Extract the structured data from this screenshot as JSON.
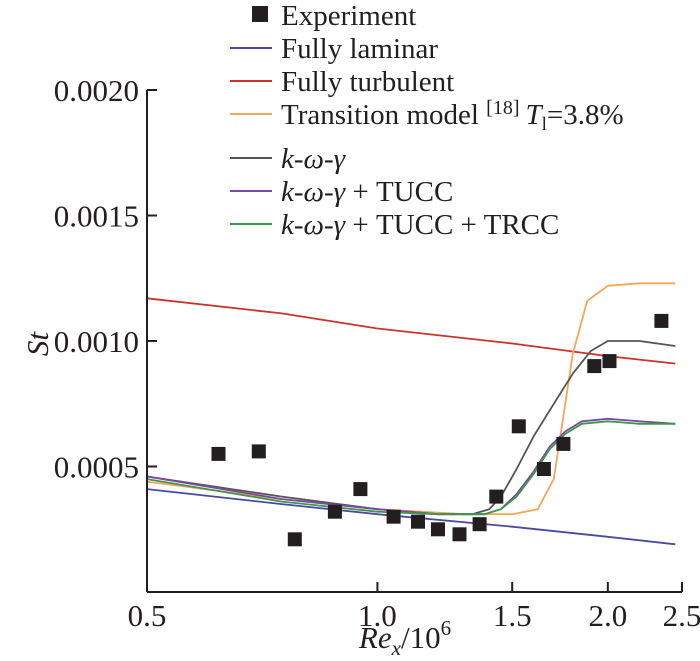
{
  "chart_data": {
    "type": "line",
    "x_scale": "log",
    "xlim": [
      0.5,
      2.5
    ],
    "ylim": [
      0,
      0.002
    ],
    "x_ticks": [
      0.5,
      1.0,
      1.5,
      2.0,
      2.5
    ],
    "x_tick_labels": [
      "0.5",
      "1.0",
      "1.5",
      "2.0",
      "2.5"
    ],
    "y_ticks": [
      0.0005,
      0.001,
      0.0015,
      0.002
    ],
    "y_tick_labels": [
      "0.0005",
      "0.0010",
      "0.0015",
      "0.0020"
    ],
    "xlabel": {
      "main": "Re",
      "sub": "x",
      "rest": "/10",
      "sup": "6"
    },
    "ylabel": "St",
    "legend": [
      {
        "name": "Experiment",
        "kind": "marker",
        "color": "#231f20",
        "label": "Experiment"
      },
      {
        "name": "Fully laminar",
        "kind": "line",
        "color": "#4a4aa0",
        "label": "Fully laminar"
      },
      {
        "name": "Fully turbulent",
        "kind": "line",
        "color": "#c8342a",
        "label": "Fully turbulent"
      },
      {
        "name": "Transition model",
        "kind": "line",
        "color": "#f5a55c",
        "label_text": "Transition model ",
        "label_ref": "[18]",
        "label_t": "T",
        "label_t_sub": "l",
        "label_value": "=3.8%"
      },
      {
        "name": "k-ω-γ",
        "kind": "line",
        "color": "#555555",
        "label_parts": [
          "k-ω-γ",
          ""
        ]
      },
      {
        "name": "k-ω-γ + TUCC",
        "kind": "line",
        "color": "#7b4aa6",
        "label_parts": [
          "k-ω-γ",
          " + TUCC"
        ]
      },
      {
        "name": "k-ω-γ + TUCC + TRCC",
        "kind": "line",
        "color": "#3a9a48",
        "label_parts": [
          "k-ω-γ",
          " + TUCC + TRCC"
        ]
      }
    ],
    "experiment": {
      "x": [
        0.62,
        0.7,
        0.78,
        0.88,
        0.95,
        1.05,
        1.13,
        1.2,
        1.28,
        1.36,
        1.43,
        1.53,
        1.65,
        1.75,
        1.92,
        2.01,
        2.35
      ],
      "y": [
        0.00055,
        0.00056,
        0.00021,
        0.00032,
        0.00041,
        0.0003,
        0.00028,
        0.00025,
        0.00023,
        0.00027,
        0.00038,
        0.00066,
        0.00049,
        0.00059,
        0.0009,
        0.00092,
        0.00108
      ]
    },
    "series": [
      {
        "name": "Fully laminar",
        "color": "#4a4aa0",
        "x": [
          0.5,
          0.75,
          1.0,
          1.5,
          2.0,
          2.45
        ],
        "y": [
          0.00041,
          0.00035,
          0.00031,
          0.00026,
          0.00022,
          0.00019
        ]
      },
      {
        "name": "Fully turbulent",
        "color": "#c8342a",
        "x": [
          0.5,
          0.75,
          1.0,
          1.5,
          2.0,
          2.45
        ],
        "y": [
          0.00117,
          0.00111,
          0.00105,
          0.00099,
          0.00094,
          0.00091
        ]
      },
      {
        "name": "Transition model",
        "color": "#f5a55c",
        "x": [
          0.5,
          0.75,
          1.0,
          1.3,
          1.5,
          1.62,
          1.7,
          1.75,
          1.8,
          1.88,
          2.0,
          2.2,
          2.45
        ],
        "y": [
          0.00044,
          0.00037,
          0.00033,
          0.00031,
          0.00031,
          0.00033,
          0.00045,
          0.0007,
          0.00095,
          0.00116,
          0.00122,
          0.00123,
          0.00123
        ]
      },
      {
        "name": "k-ω-γ",
        "color": "#555555",
        "x": [
          0.5,
          0.75,
          1.0,
          1.2,
          1.33,
          1.4,
          1.45,
          1.52,
          1.6,
          1.7,
          1.8,
          1.9,
          2.0,
          2.2,
          2.45
        ],
        "y": [
          0.00046,
          0.00038,
          0.00033,
          0.00031,
          0.00031,
          0.00033,
          0.00038,
          0.00049,
          0.00062,
          0.00075,
          0.00087,
          0.00096,
          0.001,
          0.001,
          0.00098
        ]
      },
      {
        "name": "k-ω-γ + TUCC",
        "color": "#7b4aa6",
        "x": [
          0.5,
          0.75,
          1.0,
          1.2,
          1.38,
          1.45,
          1.52,
          1.6,
          1.68,
          1.76,
          1.85,
          2.0,
          2.2,
          2.45
        ],
        "y": [
          0.00046,
          0.00037,
          0.00033,
          0.00031,
          0.00031,
          0.00033,
          0.00039,
          0.00048,
          0.00058,
          0.00064,
          0.00068,
          0.00069,
          0.00068,
          0.00067
        ]
      },
      {
        "name": "k-ω-γ + TUCC + TRCC",
        "color": "#3a9a48",
        "x": [
          0.5,
          0.75,
          1.0,
          1.2,
          1.38,
          1.45,
          1.52,
          1.6,
          1.68,
          1.76,
          1.85,
          2.0,
          2.2,
          2.45
        ],
        "y": [
          0.00045,
          0.00036,
          0.00032,
          0.00031,
          0.00031,
          0.00033,
          0.00038,
          0.00047,
          0.00057,
          0.00063,
          0.00067,
          0.00068,
          0.00067,
          0.00067
        ]
      }
    ]
  }
}
